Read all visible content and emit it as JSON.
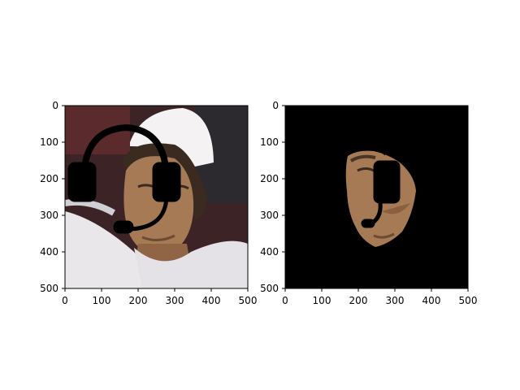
{
  "figure": {
    "background": "#ffffff",
    "panels": [
      {
        "id": "left",
        "image_description_tokens": [
          "tennis-player-photo",
          "headset-overlay-icon"
        ],
        "x_ticks": [
          "0",
          "100",
          "200",
          "300",
          "400",
          "500"
        ],
        "y_ticks": [
          "0",
          "100",
          "200",
          "300",
          "400",
          "500"
        ]
      },
      {
        "id": "right",
        "image_description_tokens": [
          "masked-face-photo",
          "headset-overlay-icon"
        ],
        "x_ticks": [
          "0",
          "100",
          "200",
          "300",
          "400",
          "500"
        ],
        "y_ticks": [
          "0",
          "100",
          "200",
          "300",
          "400",
          "500"
        ]
      }
    ]
  },
  "colors": {
    "skin": "#a57a55",
    "skin_shadow": "#6e4a30",
    "shirt": "#e9e7ea",
    "cap": "#f4f2f3",
    "hair": "#3a2a1f",
    "background_dark": "#3b2326",
    "mask": "#000000",
    "headset": "#000000"
  }
}
